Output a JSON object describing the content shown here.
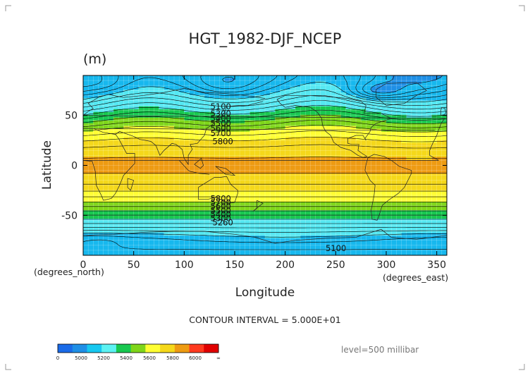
{
  "chart_data": {
    "type": "heatmap",
    "title": "HGT_1982-DJF_NCEP",
    "units": "(m)",
    "xlabel": "Longitude",
    "ylabel": "Latitude",
    "x_unit_label": "(degrees_east)",
    "y_unit_label": "(degrees_north)",
    "xlim": [
      0,
      360
    ],
    "ylim": [
      -90,
      90
    ],
    "xticks": [
      0,
      50,
      100,
      150,
      200,
      250,
      300,
      350
    ],
    "yticks": [
      -50,
      0,
      50
    ],
    "grid": true,
    "contour_interval_text": "CONTOUR INTERVAL = 5.000E+01",
    "level_text": "level=500 millibar",
    "contour_labels": [
      {
        "text": "5100",
        "lon": 126,
        "lat": 59
      },
      {
        "text": "5300",
        "lon": 126,
        "lat": 52
      },
      {
        "text": "5400",
        "lon": 126,
        "lat": 47
      },
      {
        "text": "5500",
        "lon": 126,
        "lat": 42
      },
      {
        "text": "5600",
        "lon": 126,
        "lat": 37
      },
      {
        "text": "5700",
        "lon": 126,
        "lat": 32
      },
      {
        "text": "5800",
        "lon": 128,
        "lat": 24
      },
      {
        "text": "5800",
        "lon": 126,
        "lat": -33
      },
      {
        "text": "5700",
        "lon": 126,
        "lat": -37
      },
      {
        "text": "5600",
        "lon": 126,
        "lat": -41
      },
      {
        "text": "5500",
        "lon": 126,
        "lat": -45
      },
      {
        "text": "5400",
        "lon": 126,
        "lat": -49
      },
      {
        "text": "5300",
        "lon": 126,
        "lat": -53
      },
      {
        "text": "5260",
        "lon": 128,
        "lat": -57
      },
      {
        "text": "5100",
        "lon": 240,
        "lat": -83
      }
    ],
    "colorbar": {
      "ticks": [
        "0",
        "5000",
        "5200",
        "5400",
        "5600",
        "5800",
        "6000",
        "∞"
      ],
      "colors": [
        "#1a6be8",
        "#1f8fe6",
        "#17c8f0",
        "#5cf2f2",
        "#18c850",
        "#7fd61a",
        "#ffff33",
        "#f5d81a",
        "#ee9b12",
        "#ff3a1f",
        "#e00000"
      ]
    }
  },
  "palette": {
    "band_4950": "#1f8fe6",
    "band_5000": "#17b8ee",
    "band_5200": "#55e8f2",
    "band_5400": "#18c850",
    "band_5500": "#7fd61a",
    "band_5600": "#ffff33",
    "band_5700": "#f5d81a",
    "band_5800": "#ee9b12",
    "grid": "#ffffff",
    "contour": "#000000"
  }
}
